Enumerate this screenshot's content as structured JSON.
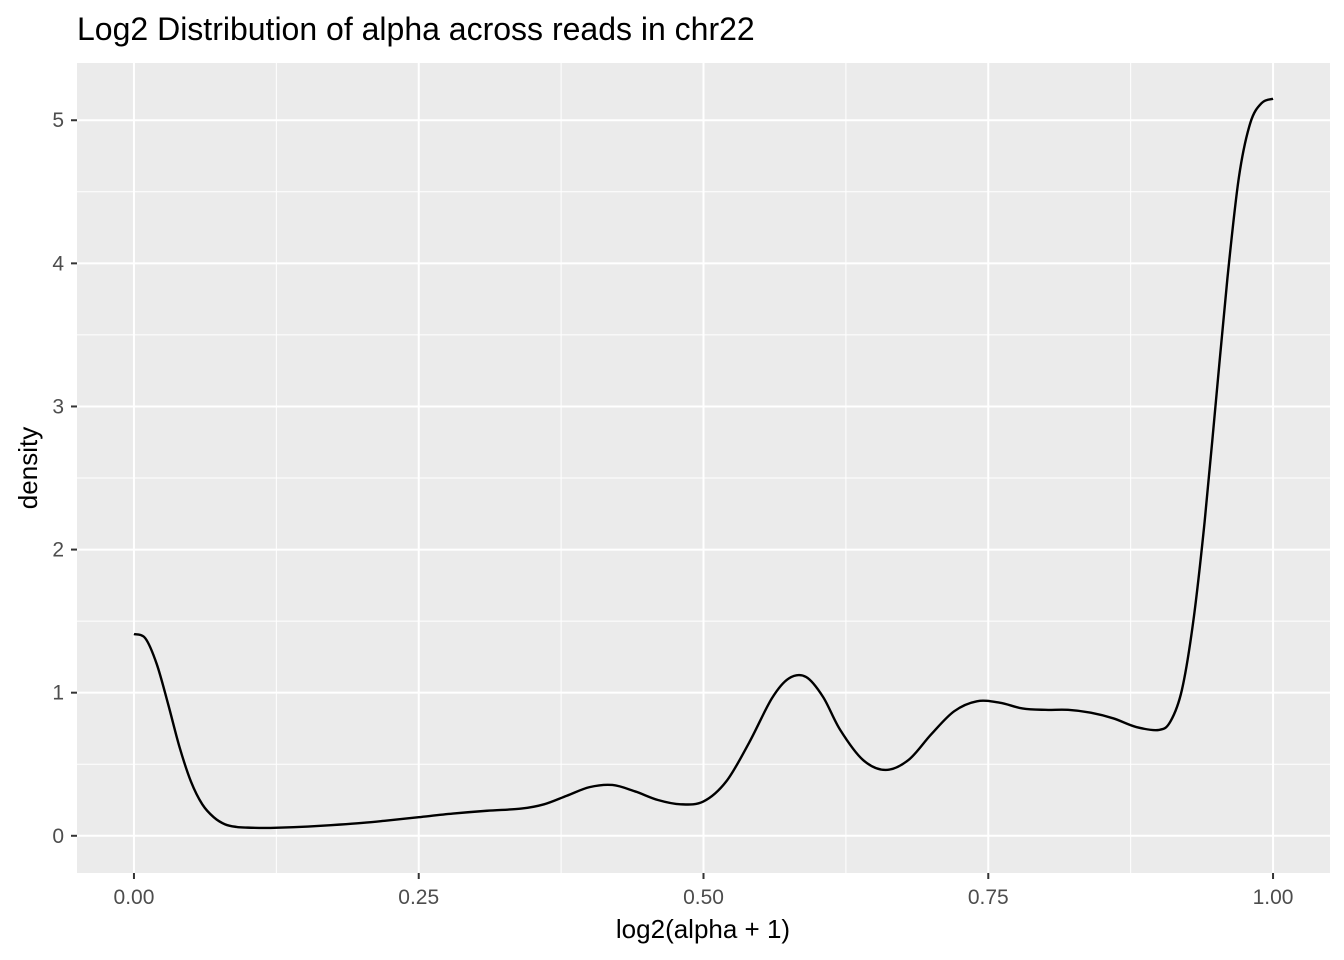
{
  "chart_data": {
    "type": "line",
    "title": "Log2 Distribution of alpha across reads in chr22",
    "xlabel": "log2(alpha + 1)",
    "ylabel": "density",
    "xlim": [
      -0.05,
      1.05
    ],
    "ylim": [
      -0.26,
      5.4
    ],
    "grid": true,
    "x_ticks": [
      0.0,
      0.25,
      0.5,
      0.75,
      1.0
    ],
    "x_tick_labels": [
      "0.00",
      "0.25",
      "0.50",
      "0.75",
      "1.00"
    ],
    "y_ticks": [
      0,
      1,
      2,
      3,
      4,
      5
    ],
    "y_tick_labels": [
      "0",
      "1",
      "2",
      "3",
      "4",
      "5"
    ],
    "colors": {
      "panel": "#ebebeb",
      "grid": "#ffffff",
      "line": "#000000",
      "tick_text": "#4d4d4d"
    },
    "series": [
      {
        "x": [
          0.0,
          0.01,
          0.02,
          0.03,
          0.04,
          0.05,
          0.06,
          0.07,
          0.08,
          0.09,
          0.1,
          0.11,
          0.12,
          0.14,
          0.16,
          0.18,
          0.2,
          0.22,
          0.25,
          0.28,
          0.31,
          0.34,
          0.36,
          0.38,
          0.4,
          0.42,
          0.44,
          0.46,
          0.48,
          0.5,
          0.52,
          0.54,
          0.56,
          0.575,
          0.59,
          0.605,
          0.62,
          0.64,
          0.66,
          0.68,
          0.7,
          0.72,
          0.74,
          0.76,
          0.78,
          0.8,
          0.82,
          0.84,
          0.86,
          0.88,
          0.9,
          0.91,
          0.92,
          0.93,
          0.94,
          0.95,
          0.96,
          0.97,
          0.98,
          0.99,
          1.0
        ],
        "y": [
          1.41,
          1.38,
          1.2,
          0.92,
          0.62,
          0.38,
          0.22,
          0.13,
          0.08,
          0.062,
          0.057,
          0.055,
          0.055,
          0.06,
          0.068,
          0.078,
          0.09,
          0.105,
          0.13,
          0.155,
          0.175,
          0.19,
          0.22,
          0.28,
          0.34,
          0.355,
          0.31,
          0.25,
          0.22,
          0.24,
          0.38,
          0.65,
          0.96,
          1.1,
          1.11,
          0.97,
          0.74,
          0.53,
          0.46,
          0.53,
          0.71,
          0.87,
          0.94,
          0.93,
          0.89,
          0.88,
          0.88,
          0.86,
          0.82,
          0.76,
          0.74,
          0.8,
          1.02,
          1.5,
          2.2,
          3.05,
          3.9,
          4.6,
          4.98,
          5.12,
          5.15
        ]
      }
    ]
  }
}
